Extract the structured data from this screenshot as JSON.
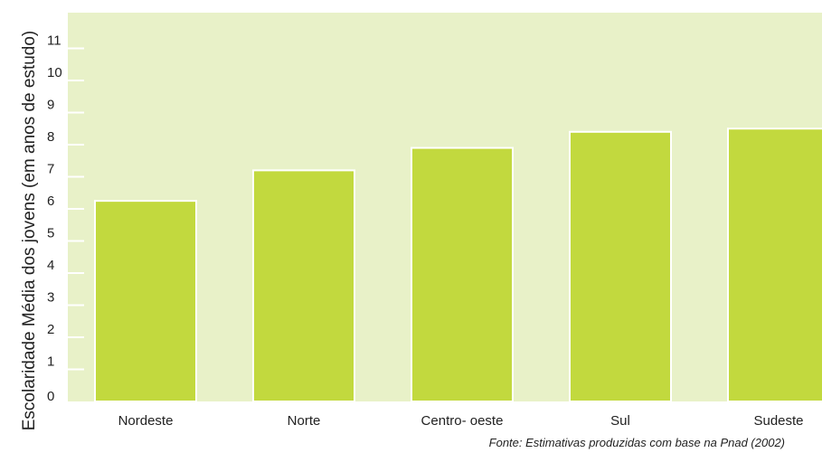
{
  "chart_data": {
    "type": "bar",
    "categories": [
      "Nordeste",
      "Norte",
      "Centro- oeste",
      "Sul",
      "Sudeste"
    ],
    "values": [
      6.25,
      7.2,
      7.9,
      8.4,
      8.5
    ],
    "ylabel": "Escolaridade Média dos jovens (em anos de estudo)",
    "xlabel": "",
    "ylim": [
      0,
      11.5
    ],
    "yticks": [
      0,
      1,
      2,
      3,
      4,
      5,
      6,
      7,
      8,
      9,
      10,
      11
    ],
    "grid": false,
    "source": "Fonte: Estimativas produzidas com base na Pnad (2002)",
    "colors": {
      "plot_background": "#e8f1c8",
      "bar": "#c2d93e",
      "bar_edge": "#ffffff",
      "tick": "#ffffff"
    }
  }
}
